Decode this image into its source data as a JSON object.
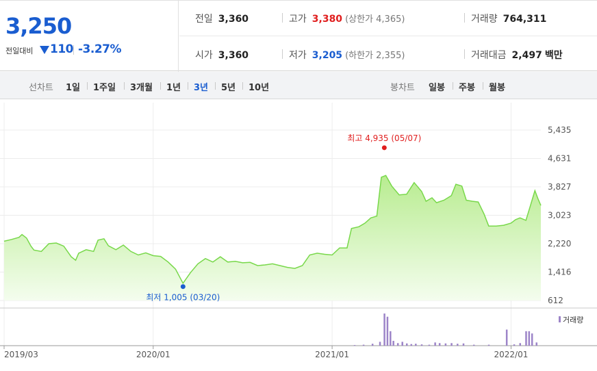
{
  "quote": {
    "price": "3,250",
    "change_label": "전일대비",
    "change_value": "110",
    "change_pct": "-3.27%",
    "prev_label": "전일",
    "prev_value": "3,360",
    "open_label": "시가",
    "open_value": "3,360",
    "high_label": "고가",
    "high_value": "3,380",
    "upper_limit": "(상한가 4,365)",
    "low_label": "저가",
    "low_value": "3,205",
    "lower_limit": "(하한가 2,355)",
    "volume_label": "거래량",
    "volume_value": "764,311",
    "amount_label": "거래대금",
    "amount_value": "2,497",
    "amount_unit": "백만"
  },
  "tabs": {
    "line_label": "선차트",
    "line_items": [
      "1일",
      "1주일",
      "3개월",
      "1년",
      "3년",
      "5년",
      "10년"
    ],
    "active": "3년",
    "candle_label": "봉차트",
    "candle_items": [
      "일봉",
      "주봉",
      "월봉"
    ]
  },
  "colors": {
    "up": "#e01e1e",
    "down": "#1a5dd0",
    "line": "#78d84a",
    "volume": "#9c84c8"
  },
  "chart_data": {
    "type": "area",
    "y_ticks": [
      "5,435",
      "4,631",
      "3,827",
      "3,023",
      "2,220",
      "1,416",
      "612"
    ],
    "ylim": [
      612,
      5435
    ],
    "x_ticks": [
      {
        "label": "2019/03",
        "x": 0
      },
      {
        "label": "2020/01",
        "x": 10
      },
      {
        "label": "2021/01",
        "x": 22
      },
      {
        "label": "2022/01",
        "x": 34
      }
    ],
    "xlim": [
      0,
      36
    ],
    "series": [
      {
        "values": [
          [
            0,
            2290
          ],
          [
            0.5,
            2340
          ],
          [
            1,
            2400
          ],
          [
            1.2,
            2480
          ],
          [
            1.5,
            2380
          ],
          [
            1.8,
            2150
          ],
          [
            2,
            2040
          ],
          [
            2.5,
            2000
          ],
          [
            3,
            2220
          ],
          [
            3.5,
            2240
          ],
          [
            4,
            2150
          ],
          [
            4.5,
            1850
          ],
          [
            4.8,
            1750
          ],
          [
            5,
            1950
          ],
          [
            5.5,
            2050
          ],
          [
            6,
            2000
          ],
          [
            6.3,
            2320
          ],
          [
            6.7,
            2360
          ],
          [
            7,
            2160
          ],
          [
            7.5,
            2050
          ],
          [
            8,
            2180
          ],
          [
            8.5,
            2000
          ],
          [
            9,
            1900
          ],
          [
            9.5,
            1960
          ],
          [
            10,
            1880
          ],
          [
            10.5,
            1860
          ],
          [
            11,
            1700
          ],
          [
            11.5,
            1500
          ],
          [
            12,
            1100
          ],
          [
            12.5,
            1400
          ],
          [
            13,
            1650
          ],
          [
            13.5,
            1800
          ],
          [
            14,
            1700
          ],
          [
            14.5,
            1850
          ],
          [
            15,
            1700
          ],
          [
            15.5,
            1720
          ],
          [
            16,
            1680
          ],
          [
            16.5,
            1690
          ],
          [
            17,
            1600
          ],
          [
            17.5,
            1620
          ],
          [
            18,
            1650
          ],
          [
            18.5,
            1600
          ],
          [
            19,
            1550
          ],
          [
            19.5,
            1520
          ],
          [
            20,
            1600
          ],
          [
            20.5,
            1900
          ],
          [
            21,
            1950
          ],
          [
            21.5,
            1920
          ],
          [
            22,
            1900
          ],
          [
            22.5,
            2100
          ],
          [
            23,
            2100
          ],
          [
            23.3,
            2650
          ],
          [
            23.8,
            2700
          ],
          [
            24.2,
            2800
          ],
          [
            24.6,
            2950
          ],
          [
            25,
            3000
          ],
          [
            25.3,
            4100
          ],
          [
            25.6,
            4150
          ],
          [
            26,
            3850
          ],
          [
            26.5,
            3600
          ],
          [
            27,
            3620
          ],
          [
            27.5,
            3950
          ],
          [
            28,
            3700
          ],
          [
            28.3,
            3420
          ],
          [
            28.7,
            3520
          ],
          [
            29,
            3380
          ],
          [
            29.5,
            3450
          ],
          [
            30,
            3580
          ],
          [
            30.3,
            3900
          ],
          [
            30.7,
            3850
          ],
          [
            31,
            3450
          ],
          [
            31.4,
            3420
          ],
          [
            31.8,
            3400
          ],
          [
            32.2,
            3050
          ],
          [
            32.5,
            2720
          ],
          [
            33,
            2720
          ],
          [
            33.5,
            2740
          ],
          [
            34,
            2800
          ],
          [
            34.3,
            2900
          ],
          [
            34.6,
            2950
          ],
          [
            35,
            2880
          ],
          [
            35.3,
            3300
          ],
          [
            35.6,
            3720
          ],
          [
            35.8,
            3500
          ],
          [
            36,
            3300
          ]
        ]
      }
    ],
    "annotations": [
      {
        "label": "최고 4,935 (05/07)",
        "x": 25.5,
        "y": 4935,
        "color": "#e01e1e"
      },
      {
        "label": "최저 1,005 (03/20)",
        "x": 12,
        "y": 1005,
        "color": "#1a5dd0"
      }
    ],
    "volume_label": "거래량",
    "volume_bars": [
      [
        23.5,
        0.02
      ],
      [
        24.1,
        0.03
      ],
      [
        24.7,
        0.06
      ],
      [
        25.2,
        0.12
      ],
      [
        25.5,
        1.0
      ],
      [
        25.7,
        0.9
      ],
      [
        25.9,
        0.45
      ],
      [
        26.1,
        0.15
      ],
      [
        26.4,
        0.08
      ],
      [
        26.7,
        0.12
      ],
      [
        27.0,
        0.07
      ],
      [
        27.3,
        0.05
      ],
      [
        27.6,
        0.06
      ],
      [
        28.0,
        0.04
      ],
      [
        28.5,
        0.03
      ],
      [
        28.9,
        0.1
      ],
      [
        29.2,
        0.08
      ],
      [
        29.6,
        0.07
      ],
      [
        30.0,
        0.08
      ],
      [
        30.4,
        0.06
      ],
      [
        30.8,
        0.07
      ],
      [
        31.5,
        0.03
      ],
      [
        32.5,
        0.03
      ],
      [
        33.7,
        0.5
      ],
      [
        34.2,
        0.04
      ],
      [
        34.6,
        0.08
      ],
      [
        35.0,
        0.45
      ],
      [
        35.2,
        0.45
      ],
      [
        35.4,
        0.38
      ],
      [
        35.7,
        0.1
      ]
    ]
  }
}
